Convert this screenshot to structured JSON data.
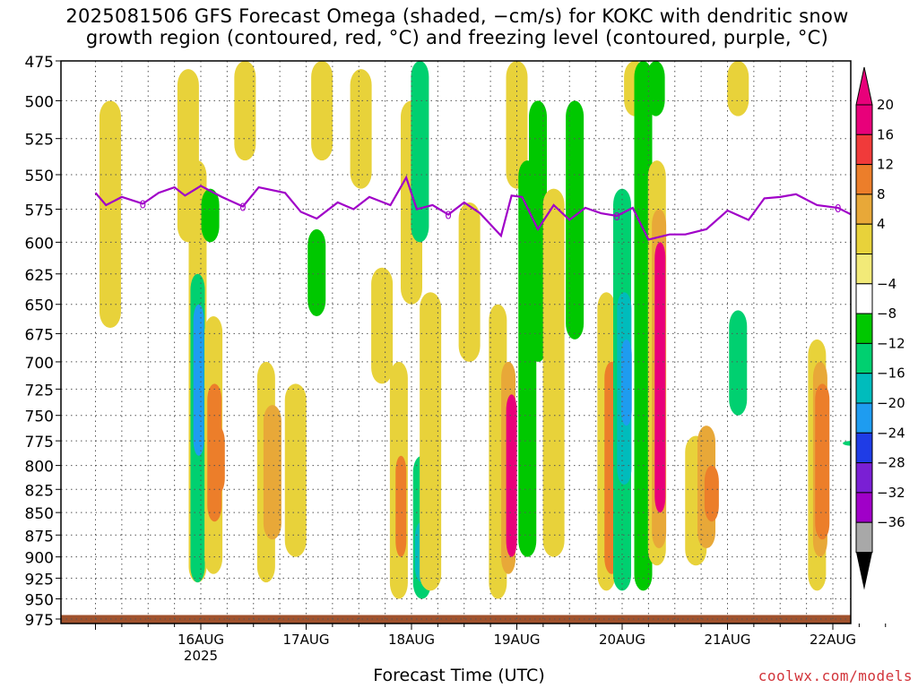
{
  "title": {
    "line1": "2025081506 GFS Forecast Omega (shaded, −cm/s) for KOKC with dendritic snow",
    "line2": "growth region (contoured, red, °C) and freezing level (contoured, purple, °C)"
  },
  "credit": "coolwx.com/models",
  "chart_data": {
    "type": "heatmap",
    "title": "2025081506 GFS Forecast Omega (shaded, −cm/s) for KOKC with dendritic snow growth region (contoured, red, °C) and freezing level (contoured, purple, °C)",
    "xlabel": "Forecast Time (UTC)",
    "ylabel": "",
    "x_range": [
      "2025-08-15T06:00Z",
      "2025-08-22T18:00Z"
    ],
    "x_ticks": [
      {
        "label": "16AUG",
        "sublabel": "2025",
        "day": 1.0
      },
      {
        "label": "17AUG",
        "sublabel": "",
        "day": 2.0
      },
      {
        "label": "18AUG",
        "sublabel": "",
        "day": 3.0
      },
      {
        "label": "19AUG",
        "sublabel": "",
        "day": 4.0
      },
      {
        "label": "20AUG",
        "sublabel": "",
        "day": 5.0
      },
      {
        "label": "21AUG",
        "sublabel": "",
        "day": 6.0
      },
      {
        "label": "22AUG",
        "sublabel": "",
        "day": 7.0
      }
    ],
    "y_ticks": [
      475,
      500,
      525,
      550,
      575,
      600,
      625,
      650,
      675,
      700,
      725,
      750,
      775,
      800,
      825,
      850,
      875,
      900,
      925,
      950,
      975
    ],
    "y_range": [
      475,
      975
    ],
    "y_scale": "log-pressure (inverted)",
    "grid": true,
    "colorbar": {
      "labels": [
        "20",
        "16",
        "12",
        "8",
        "4",
        "−4",
        "−8",
        "−12",
        "−16",
        "−20",
        "−24",
        "−28",
        "−32",
        "−36"
      ],
      "colors": [
        "#e8007a",
        "#f03a3a",
        "#ec7e2a",
        "#e8a838",
        "#e8d23a",
        "#f2ea78",
        "#ffffff",
        "#00c800",
        "#00d070",
        "#00bcbc",
        "#1e9cf0",
        "#1f3ce6",
        "#7a1fd4",
        "#a000c8",
        "#a8a8a8"
      ],
      "top_arrow_color": "#e8007a",
      "bottom_arrow_color": "#000000"
    },
    "shading": [
      {
        "day": 0.14,
        "p_top": 500,
        "p_bot": 670,
        "value": 5
      },
      {
        "day": 0.88,
        "p_top": 480,
        "p_bot": 600,
        "value": 5
      },
      {
        "day": 0.97,
        "p_top": 540,
        "p_bot": 930,
        "value": 6
      },
      {
        "day": 0.97,
        "p_top": 625,
        "p_bot": 930,
        "value": -10
      },
      {
        "day": 0.98,
        "p_top": 650,
        "p_bot": 790,
        "value": -18
      },
      {
        "day": 1.09,
        "p_top": 560,
        "p_bot": 600,
        "value": -7
      },
      {
        "day": 1.12,
        "p_top": 660,
        "p_bot": 920,
        "value": 6
      },
      {
        "day": 1.13,
        "p_top": 720,
        "p_bot": 860,
        "value": 12
      },
      {
        "day": 1.16,
        "p_top": 760,
        "p_bot": 830,
        "value": 14
      },
      {
        "day": 1.62,
        "p_top": 700,
        "p_bot": 930,
        "value": 6
      },
      {
        "day": 1.68,
        "p_top": 740,
        "p_bot": 880,
        "value": 9
      },
      {
        "day": 1.9,
        "p_top": 720,
        "p_bot": 900,
        "value": 5
      },
      {
        "day": 1.42,
        "p_top": 475,
        "p_bot": 540,
        "value": 5
      },
      {
        "day": 2.15,
        "p_top": 475,
        "p_bot": 540,
        "value": 5
      },
      {
        "day": 2.1,
        "p_top": 590,
        "p_bot": 660,
        "value": -6
      },
      {
        "day": 2.52,
        "p_top": 480,
        "p_bot": 560,
        "value": 5
      },
      {
        "day": 2.72,
        "p_top": 620,
        "p_bot": 720,
        "value": 5
      },
      {
        "day": 2.88,
        "p_top": 700,
        "p_bot": 950,
        "value": 6
      },
      {
        "day": 2.9,
        "p_top": 790,
        "p_bot": 900,
        "value": 15
      },
      {
        "day": 3.0,
        "p_top": 500,
        "p_bot": 650,
        "value": 5
      },
      {
        "day": 3.08,
        "p_top": 475,
        "p_bot": 600,
        "value": -8
      },
      {
        "day": 3.1,
        "p_top": 790,
        "p_bot": 950,
        "value": -9
      },
      {
        "day": 3.1,
        "p_top": 860,
        "p_bot": 930,
        "value": -14
      },
      {
        "day": 3.18,
        "p_top": 640,
        "p_bot": 940,
        "value": 5
      },
      {
        "day": 3.55,
        "p_top": 570,
        "p_bot": 700,
        "value": 5
      },
      {
        "day": 3.82,
        "p_top": 650,
        "p_bot": 950,
        "value": 6
      },
      {
        "day": 3.92,
        "p_top": 700,
        "p_bot": 920,
        "value": 10
      },
      {
        "day": 3.95,
        "p_top": 730,
        "p_bot": 900,
        "value": 20
      },
      {
        "day": 4.0,
        "p_top": 475,
        "p_bot": 560,
        "value": 5
      },
      {
        "day": 4.1,
        "p_top": 540,
        "p_bot": 900,
        "value": -7
      },
      {
        "day": 4.2,
        "p_top": 500,
        "p_bot": 700,
        "value": -6
      },
      {
        "day": 4.35,
        "p_top": 560,
        "p_bot": 900,
        "value": 5
      },
      {
        "day": 4.55,
        "p_top": 500,
        "p_bot": 680,
        "value": -6
      },
      {
        "day": 4.85,
        "p_top": 640,
        "p_bot": 940,
        "value": 6
      },
      {
        "day": 4.9,
        "p_top": 700,
        "p_bot": 920,
        "value": 12
      },
      {
        "day": 4.94,
        "p_top": 740,
        "p_bot": 900,
        "value": 15
      },
      {
        "day": 5.0,
        "p_top": 560,
        "p_bot": 940,
        "value": -8
      },
      {
        "day": 5.02,
        "p_top": 640,
        "p_bot": 820,
        "value": -12
      },
      {
        "day": 5.04,
        "p_top": 680,
        "p_bot": 760,
        "value": -18
      },
      {
        "day": 5.12,
        "p_top": 475,
        "p_bot": 510,
        "value": 5
      },
      {
        "day": 5.2,
        "p_top": 475,
        "p_bot": 940,
        "value": -7
      },
      {
        "day": 5.32,
        "p_top": 475,
        "p_bot": 510,
        "value": -7
      },
      {
        "day": 5.33,
        "p_top": 540,
        "p_bot": 910,
        "value": 6
      },
      {
        "day": 5.35,
        "p_top": 575,
        "p_bot": 890,
        "value": 10
      },
      {
        "day": 5.36,
        "p_top": 600,
        "p_bot": 850,
        "value": 20
      },
      {
        "day": 5.7,
        "p_top": 770,
        "p_bot": 910,
        "value": 5
      },
      {
        "day": 5.8,
        "p_top": 760,
        "p_bot": 890,
        "value": 8
      },
      {
        "day": 5.85,
        "p_top": 800,
        "p_bot": 860,
        "value": 12
      },
      {
        "day": 6.1,
        "p_top": 655,
        "p_bot": 750,
        "value": -8
      },
      {
        "day": 6.1,
        "p_top": 475,
        "p_bot": 510,
        "value": 5
      },
      {
        "day": 6.85,
        "p_top": 680,
        "p_bot": 940,
        "value": 6
      },
      {
        "day": 6.88,
        "p_top": 700,
        "p_bot": 900,
        "value": 10
      },
      {
        "day": 6.9,
        "p_top": 720,
        "p_bot": 880,
        "value": 13
      },
      {
        "day": 7.18,
        "p_top": 775,
        "p_bot": 780,
        "value": -8
      }
    ],
    "freezing_level": {
      "label": "0",
      "color": "#a000c8",
      "days": [
        0.0,
        0.1,
        0.25,
        0.45,
        0.6,
        0.75,
        0.85,
        1.0,
        1.2,
        1.4,
        1.55,
        1.8,
        1.95,
        2.1,
        2.3,
        2.45,
        2.6,
        2.8,
        2.95,
        3.05,
        3.2,
        3.35,
        3.5,
        3.65,
        3.85,
        3.95,
        4.05,
        4.2,
        4.35,
        4.5,
        4.65,
        4.8,
        4.95,
        5.1,
        5.25,
        5.45,
        5.6,
        5.8,
        6.0,
        6.2,
        6.35,
        6.5,
        6.65,
        6.85,
        7.05,
        7.25,
        7.5,
        7.7
      ],
      "pressures": [
        563,
        572,
        566,
        571,
        563,
        559,
        565,
        558,
        566,
        573,
        559,
        563,
        577,
        582,
        570,
        575,
        566,
        572,
        552,
        575,
        572,
        579,
        570,
        578,
        595,
        565,
        566,
        590,
        572,
        583,
        574,
        578,
        580,
        574,
        598,
        594,
        594,
        590,
        576,
        583,
        567,
        566,
        564,
        572,
        574,
        582,
        578,
        578
      ]
    },
    "ground": {
      "p_top": 970,
      "color": "#a0522d"
    }
  }
}
